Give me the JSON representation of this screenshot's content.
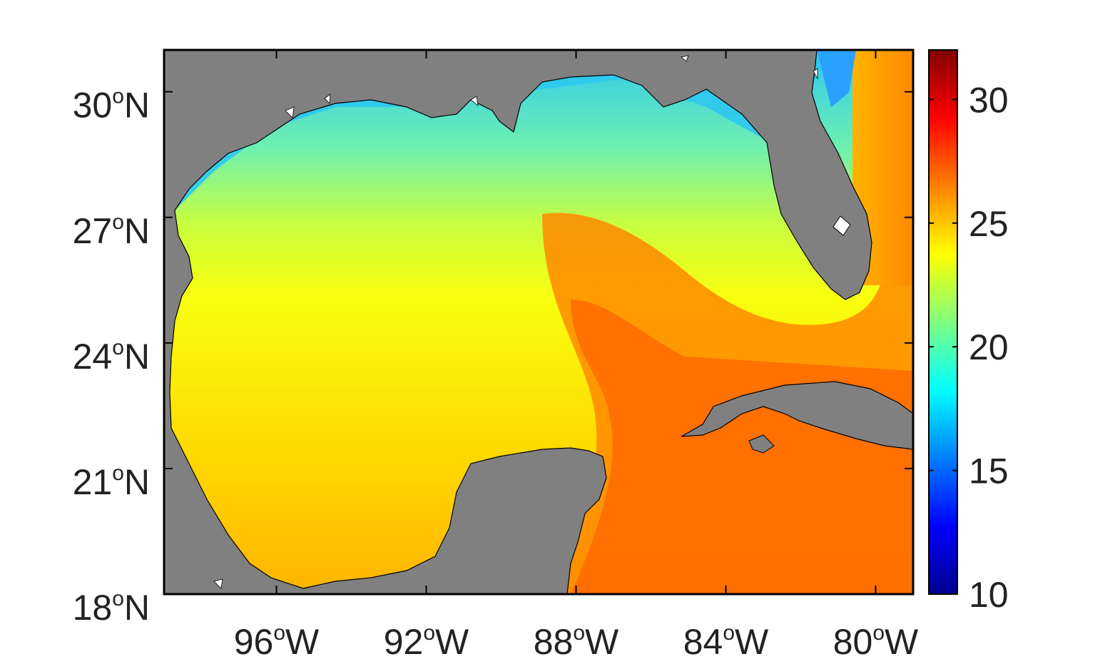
{
  "map": {
    "lon_range": [
      -99,
      -79
    ],
    "lat_range": [
      18,
      31
    ],
    "colors": {
      "land": "#808080",
      "frame": "#000000"
    },
    "x_ticks": [
      {
        "value": -96,
        "deg": "96",
        "sup": "o",
        "hem": "W"
      },
      {
        "value": -92,
        "deg": "92",
        "sup": "o",
        "hem": "W"
      },
      {
        "value": -88,
        "deg": "88",
        "sup": "o",
        "hem": "W"
      },
      {
        "value": -84,
        "deg": "84",
        "sup": "o",
        "hem": "W"
      },
      {
        "value": -80,
        "deg": "80",
        "sup": "o",
        "hem": "W"
      }
    ],
    "y_ticks": [
      {
        "value": 30,
        "deg": "30",
        "sup": "o",
        "hem": "N"
      },
      {
        "value": 27,
        "deg": "27",
        "sup": "o",
        "hem": "N"
      },
      {
        "value": 24,
        "deg": "24",
        "sup": "o",
        "hem": "N"
      },
      {
        "value": 21,
        "deg": "21",
        "sup": "o",
        "hem": "N"
      },
      {
        "value": 18,
        "deg": "18",
        "sup": "o",
        "hem": "N"
      }
    ]
  },
  "colorbar": {
    "range": [
      10,
      32
    ],
    "colormap": "jet",
    "ticks": [
      "10",
      "15",
      "20",
      "25",
      "30"
    ],
    "tick_values": [
      10,
      15,
      20,
      25,
      30
    ]
  }
}
